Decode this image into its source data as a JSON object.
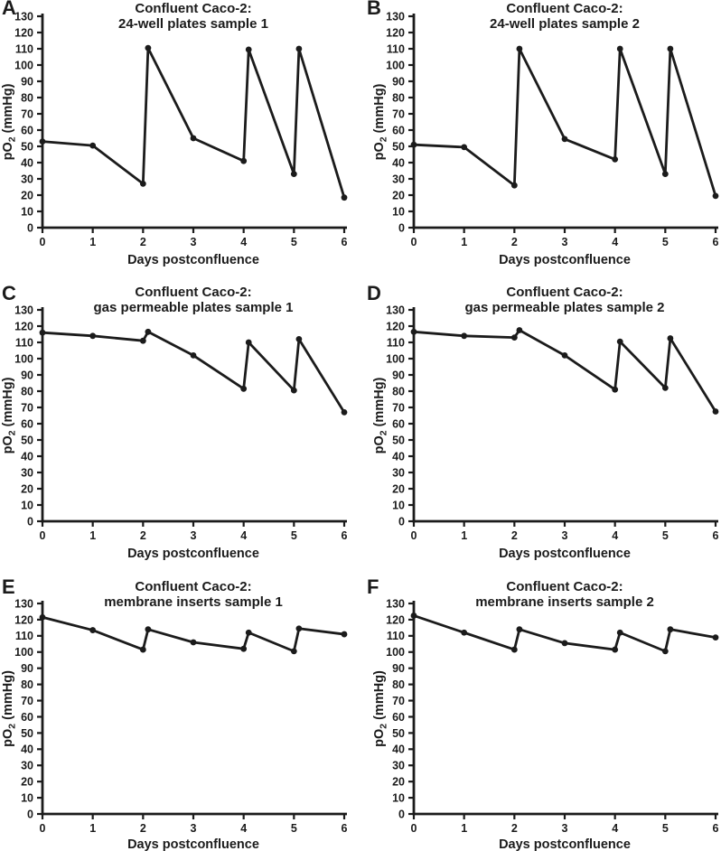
{
  "figure": {
    "background": "#ffffff",
    "ink_color": "#1b1b1b",
    "xlabel": "Days postconfluence",
    "ylabel": {
      "pre": "pO",
      "sub": "2",
      "post": " (mmHg)"
    }
  },
  "chart_data": [
    {
      "type": "line",
      "panel": "A",
      "title_line1": "Confluent Caco-2:",
      "title_line2": "24-well plates sample 1",
      "xlabel": "Days postconfluence",
      "ylabel": {
        "pre": "pO",
        "sub": "2",
        "post": " (mmHg)"
      },
      "xlim": [
        0,
        6
      ],
      "ylim": [
        0,
        130
      ],
      "x_ticks": [
        0,
        1,
        2,
        3,
        4,
        5,
        6
      ],
      "y_ticks": [
        0,
        10,
        20,
        30,
        40,
        50,
        60,
        70,
        80,
        90,
        100,
        110,
        120,
        130
      ],
      "x": [
        0,
        1,
        2,
        2.1,
        3,
        4,
        4.1,
        5,
        5.1,
        6
      ],
      "y": [
        53,
        50.5,
        27,
        110.5,
        55,
        41,
        109.5,
        33,
        110,
        18.5
      ]
    },
    {
      "type": "line",
      "panel": "B",
      "title_line1": "Confluent Caco-2:",
      "title_line2": "24-well plates sample 2",
      "xlabel": "Days postconfluence",
      "ylabel": {
        "pre": "pO",
        "sub": "2",
        "post": " (mmHg)"
      },
      "xlim": [
        0,
        6
      ],
      "ylim": [
        0,
        130
      ],
      "x_ticks": [
        0,
        1,
        2,
        3,
        4,
        5,
        6
      ],
      "y_ticks": [
        0,
        10,
        20,
        30,
        40,
        50,
        60,
        70,
        80,
        90,
        100,
        110,
        120,
        130
      ],
      "x": [
        0,
        1,
        2,
        2.1,
        3,
        4,
        4.1,
        5,
        5.1,
        6
      ],
      "y": [
        51,
        49.5,
        26,
        110,
        54.5,
        42,
        110,
        33,
        110,
        19.5
      ]
    },
    {
      "type": "line",
      "panel": "C",
      "title_line1": "Confluent Caco-2:",
      "title_line2": "gas permeable plates sample 1",
      "xlabel": "Days postconfluence",
      "ylabel": {
        "pre": "pO",
        "sub": "2",
        "post": " (mmHg)"
      },
      "xlim": [
        0,
        6
      ],
      "ylim": [
        0,
        130
      ],
      "x_ticks": [
        0,
        1,
        2,
        3,
        4,
        5,
        6
      ],
      "y_ticks": [
        0,
        10,
        20,
        30,
        40,
        50,
        60,
        70,
        80,
        90,
        100,
        110,
        120,
        130
      ],
      "x": [
        0,
        1,
        2,
        2.1,
        3,
        4,
        4.1,
        5,
        5.1,
        6
      ],
      "y": [
        116,
        114,
        111,
        116.5,
        102,
        81.5,
        110,
        80.5,
        112,
        67
      ]
    },
    {
      "type": "line",
      "panel": "D",
      "title_line1": "Confluent Caco-2:",
      "title_line2": "gas permeable plates sample 2",
      "xlabel": "Days postconfluence",
      "ylabel": {
        "pre": "pO",
        "sub": "2",
        "post": " (mmHg)"
      },
      "xlim": [
        0,
        6
      ],
      "ylim": [
        0,
        130
      ],
      "x_ticks": [
        0,
        1,
        2,
        3,
        4,
        5,
        6
      ],
      "y_ticks": [
        0,
        10,
        20,
        30,
        40,
        50,
        60,
        70,
        80,
        90,
        100,
        110,
        120,
        130
      ],
      "x": [
        0,
        1,
        2,
        2.1,
        3,
        4,
        4.1,
        5,
        5.1,
        6
      ],
      "y": [
        116.5,
        114,
        113,
        117.5,
        102,
        81,
        110.5,
        82,
        112.5,
        67.5
      ]
    },
    {
      "type": "line",
      "panel": "E",
      "title_line1": "Confluent Caco-2:",
      "title_line2": "membrane inserts sample 1",
      "xlabel": "Days postconfluence",
      "ylabel": {
        "pre": "pO",
        "sub": "2",
        "post": " (mmHg)"
      },
      "xlim": [
        0,
        6
      ],
      "ylim": [
        0,
        130
      ],
      "x_ticks": [
        0,
        1,
        2,
        3,
        4,
        5,
        6
      ],
      "y_ticks": [
        0,
        10,
        20,
        30,
        40,
        50,
        60,
        70,
        80,
        90,
        100,
        110,
        120,
        130
      ],
      "x": [
        0,
        1,
        2,
        2.1,
        3,
        4,
        4.1,
        5,
        5.1,
        6
      ],
      "y": [
        121.5,
        113.5,
        101.5,
        114,
        106,
        102,
        112,
        100.5,
        114.5,
        111
      ]
    },
    {
      "type": "line",
      "panel": "F",
      "title_line1": "Confluent Caco-2:",
      "title_line2": "membrane inserts sample 2",
      "xlabel": "Days postconfluence",
      "ylabel": {
        "pre": "pO",
        "sub": "2",
        "post": " (mmHg)"
      },
      "xlim": [
        0,
        6
      ],
      "ylim": [
        0,
        130
      ],
      "x_ticks": [
        0,
        1,
        2,
        3,
        4,
        5,
        6
      ],
      "y_ticks": [
        0,
        10,
        20,
        30,
        40,
        50,
        60,
        70,
        80,
        90,
        100,
        110,
        120,
        130
      ],
      "x": [
        0,
        1,
        2,
        2.1,
        3,
        4,
        4.1,
        5,
        5.1,
        6
      ],
      "y": [
        122.5,
        112,
        101.5,
        114,
        105.5,
        101.5,
        112,
        100.5,
        114,
        109
      ]
    }
  ]
}
